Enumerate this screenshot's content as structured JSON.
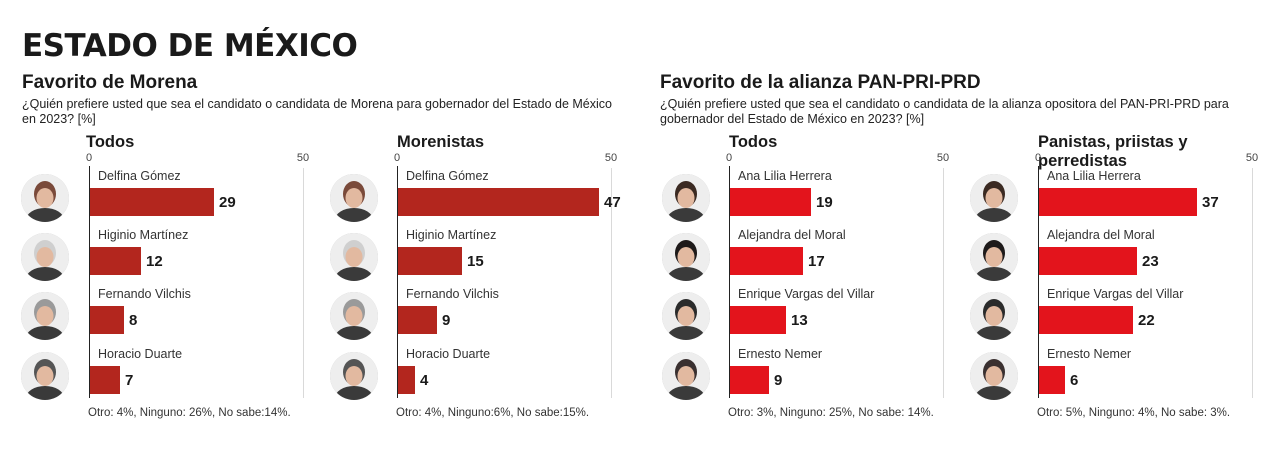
{
  "header": {
    "title": "ESTADO DE MÉXICO"
  },
  "sections": [
    {
      "title": "Favorito de Morena",
      "question": "¿Quién prefiere usted que sea el candidato o candidata de Morena para gobernador del Estado de México en  2023? [%]"
    },
    {
      "title": "Favorito de la alianza PAN-PRI-PRD",
      "question": "¿Quién prefiere usted que sea el candidato o candidata de la alianza opositora del PAN-PRI-PRD para gobernador  del Estado de México en  2023? [%]"
    }
  ],
  "colors": {
    "morena_bar": "#b3261e",
    "alianza_bar": "#e3141c"
  },
  "chart_data": [
    {
      "type": "bar",
      "orientation": "horizontal",
      "title": "Todos",
      "categories": [
        "Delfina Gómez",
        "Higinio Martínez",
        "Fernando Vilchis",
        "Horacio Duarte"
      ],
      "values": [
        29,
        12,
        8,
        7
      ],
      "xlim": [
        0,
        50
      ],
      "ticks": [
        "0",
        "50"
      ],
      "note": "Otro: 4%, Ninguno: 26%, No sabe:14%."
    },
    {
      "type": "bar",
      "orientation": "horizontal",
      "title": "Morenistas",
      "categories": [
        "Delfina Gómez",
        "Higinio Martínez",
        "Fernando Vilchis",
        "Horacio Duarte"
      ],
      "values": [
        47,
        15,
        9,
        4
      ],
      "xlim": [
        0,
        50
      ],
      "ticks": [
        "0",
        "50"
      ],
      "note": "Otro: 4%, Ninguno:6%, No sabe:15%."
    },
    {
      "type": "bar",
      "orientation": "horizontal",
      "title": "Todos",
      "categories": [
        "Ana Lilia Herrera",
        "Alejandra del Moral",
        "Enrique Vargas del Villar",
        "Ernesto Nemer"
      ],
      "values": [
        19,
        17,
        13,
        9
      ],
      "xlim": [
        0,
        50
      ],
      "ticks": [
        "0",
        "50"
      ],
      "note": "Otro: 3%, Ninguno: 25%, No sabe: 14%."
    },
    {
      "type": "bar",
      "orientation": "horizontal",
      "title": "Panistas, priistas y perredistas",
      "categories": [
        "Ana Lilia Herrera",
        "Alejandra del Moral",
        "Enrique Vargas del Villar",
        "Ernesto Nemer"
      ],
      "values": [
        37,
        23,
        22,
        6
      ],
      "xlim": [
        0,
        50
      ],
      "ticks": [
        "0",
        "50"
      ],
      "note": "Otro: 5%, Ninguno: 4%, No sabe: 3%."
    }
  ]
}
